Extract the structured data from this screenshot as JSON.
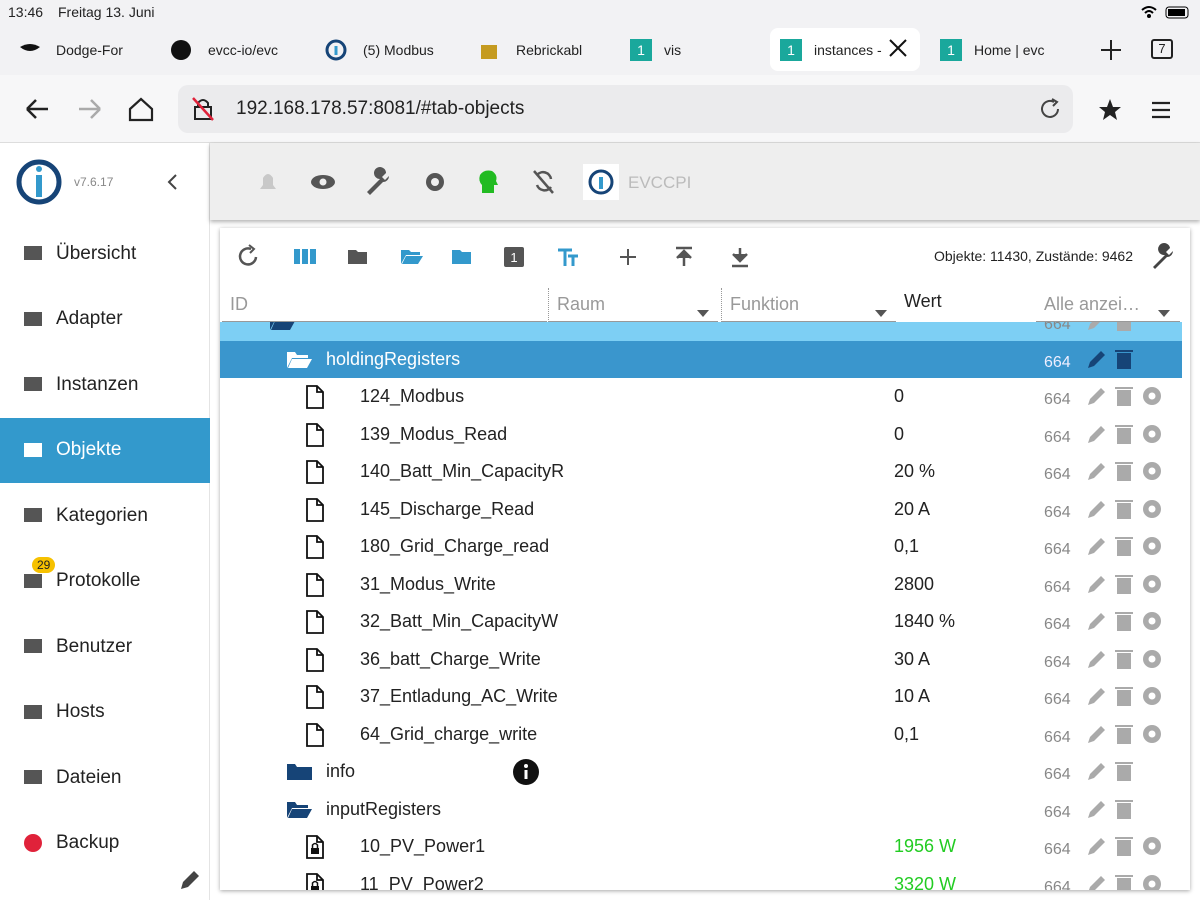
{
  "status": {
    "time": "13:46",
    "date": "Freitag 13. Juni"
  },
  "tabs": [
    {
      "label": "Dodge-For"
    },
    {
      "label": "evcc-io/evc"
    },
    {
      "label": "(5) Modbus"
    },
    {
      "label": "Rebrickabl"
    },
    {
      "label": "vis",
      "badge": "1"
    },
    {
      "label": "instances -",
      "badge": "1",
      "active": true
    },
    {
      "label": "Home | evc",
      "badge": "1"
    }
  ],
  "tab_count": "7",
  "url": "192.168.178.57:8081/#tab-objects",
  "sidebar": {
    "version": "v7.6.17",
    "items": [
      {
        "label": "Übersicht"
      },
      {
        "label": "Adapter"
      },
      {
        "label": "Instanzen"
      },
      {
        "label": "Objekte",
        "active": true
      },
      {
        "label": "Kategorien"
      },
      {
        "label": "Protokolle",
        "badge": "29"
      },
      {
        "label": "Benutzer"
      },
      {
        "label": "Hosts"
      },
      {
        "label": "Dateien"
      },
      {
        "label": "Backup"
      }
    ]
  },
  "toolbar": {
    "instance": "EVCCPI"
  },
  "objects": {
    "summary": "Objekte: 11430, Zustände: 9462",
    "columns": [
      "ID",
      "Raum",
      "Funktion",
      "Wert",
      "Alle anzei…"
    ],
    "tree": [
      {
        "acl": "664",
        "open": true,
        "children": [
          {
            "name": "holdingRegisters",
            "acl": "664",
            "open": true,
            "selected": true,
            "children": [
              {
                "name": "124_Modbus",
                "value": "0",
                "acl": "664"
              },
              {
                "name": "139_Modus_Read",
                "value": "0",
                "acl": "664"
              },
              {
                "name": "140_Batt_Min_CapacityR",
                "value": "20 %",
                "acl": "664"
              },
              {
                "name": "145_Discharge_Read",
                "value": "20 A",
                "acl": "664"
              },
              {
                "name": "180_Grid_Charge_read",
                "value": "0,1",
                "acl": "664"
              },
              {
                "name": "31_Modus_Write",
                "value": "2800",
                "acl": "664"
              },
              {
                "name": "32_Batt_Min_CapacityW",
                "value": "1840 %",
                "acl": "664"
              },
              {
                "name": "36_batt_Charge_Write",
                "value": "30 A",
                "acl": "664"
              },
              {
                "name": "37_Entladung_AC_Write",
                "value": "10 A",
                "acl": "664"
              },
              {
                "name": "64_Grid_charge_write",
                "value": "0,1",
                "acl": "664"
              }
            ]
          },
          {
            "name": "info",
            "acl": "664",
            "open": false,
            "info": true
          },
          {
            "name": "inputRegisters",
            "acl": "664",
            "open": true,
            "children": [
              {
                "name": "10_PV_Power1",
                "value": "1956 W",
                "acl": "664",
                "locked": true,
                "color": "#22cc22"
              },
              {
                "name": "11_PV_Power2",
                "value": "3320 W",
                "acl": "664",
                "locked": true,
                "color": "#22cc22"
              }
            ]
          }
        ]
      }
    ]
  }
}
